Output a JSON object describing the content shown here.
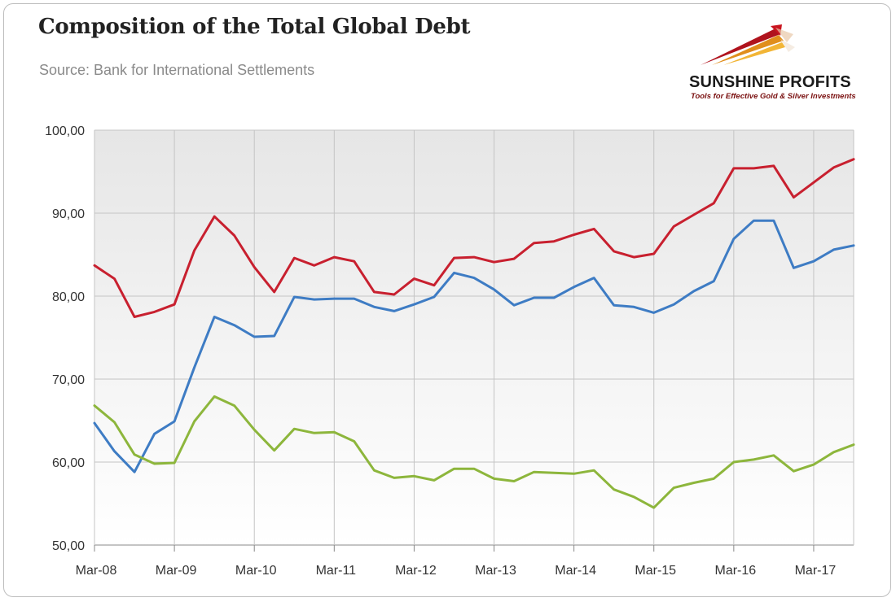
{
  "header": {
    "title": "Composition of the Total Global Debt",
    "subtitle": "Source: Bank for International Settlements"
  },
  "logo": {
    "name": "SUNSHINE PROFITS",
    "tagline": "Tools for Effective Gold & Silver Investments"
  },
  "chart_data": {
    "type": "line",
    "title": "Composition of the Total Global Debt",
    "subtitle": "Source: Bank for International Settlements",
    "xlabel": "",
    "ylabel": "",
    "ylim": [
      50,
      100
    ],
    "yticks": [
      "50,00",
      "60,00",
      "70,00",
      "80,00",
      "90,00",
      "100,00"
    ],
    "xticks": [
      "Mar-08",
      "Mar-09",
      "Mar-10",
      "Mar-11",
      "Mar-12",
      "Mar-13",
      "Mar-14",
      "Mar-15",
      "Mar-16",
      "Mar-17"
    ],
    "grid": true,
    "legend": "none",
    "x": [
      "Mar-08",
      "Jun-08",
      "Sep-08",
      "Dec-08",
      "Mar-09",
      "Jun-09",
      "Sep-09",
      "Dec-09",
      "Mar-10",
      "Jun-10",
      "Sep-10",
      "Dec-10",
      "Mar-11",
      "Jun-11",
      "Sep-11",
      "Dec-11",
      "Mar-12",
      "Jun-12",
      "Sep-12",
      "Dec-12",
      "Mar-13",
      "Jun-13",
      "Sep-13",
      "Dec-13",
      "Mar-14",
      "Jun-14",
      "Sep-14",
      "Dec-14",
      "Mar-15",
      "Jun-15",
      "Sep-15",
      "Dec-15",
      "Mar-16",
      "Jun-16",
      "Sep-16",
      "Dec-16",
      "Mar-17",
      "Jun-17",
      "Sep-17"
    ],
    "series": [
      {
        "color": "#c8202f",
        "values": [
          83.7,
          82.1,
          77.5,
          78.1,
          79.0,
          85.5,
          89.6,
          87.3,
          83.5,
          80.5,
          84.6,
          83.7,
          84.7,
          84.2,
          80.5,
          80.2,
          82.1,
          81.3,
          84.6,
          84.7,
          84.1,
          84.5,
          86.4,
          86.6,
          87.4,
          88.1,
          85.4,
          84.7,
          85.1,
          88.4,
          89.8,
          91.2,
          95.4,
          95.4,
          95.7,
          91.9,
          93.7,
          95.5,
          96.5
        ]
      },
      {
        "color": "#3e7cc4",
        "values": [
          64.7,
          61.3,
          58.8,
          63.4,
          64.9,
          71.4,
          77.5,
          76.5,
          75.1,
          75.2,
          79.9,
          79.6,
          79.7,
          79.7,
          78.7,
          78.2,
          79.0,
          79.9,
          82.8,
          82.2,
          80.8,
          78.9,
          79.8,
          79.8,
          81.1,
          82.2,
          78.9,
          78.7,
          78.0,
          79.0,
          80.6,
          81.8,
          86.9,
          89.1,
          89.1,
          83.4,
          84.2,
          85.6,
          86.1
        ]
      },
      {
        "color": "#8db63c",
        "values": [
          66.8,
          64.8,
          60.9,
          59.8,
          59.9,
          64.9,
          67.9,
          66.8,
          63.9,
          61.4,
          64.0,
          63.5,
          63.6,
          62.5,
          59.0,
          58.1,
          58.3,
          57.8,
          59.2,
          59.2,
          58.0,
          57.7,
          58.8,
          58.7,
          58.6,
          59.0,
          56.7,
          55.8,
          54.5,
          56.9,
          57.5,
          58.0,
          60.0,
          60.3,
          60.8,
          58.9,
          59.7,
          61.2,
          62.1
        ]
      }
    ]
  }
}
